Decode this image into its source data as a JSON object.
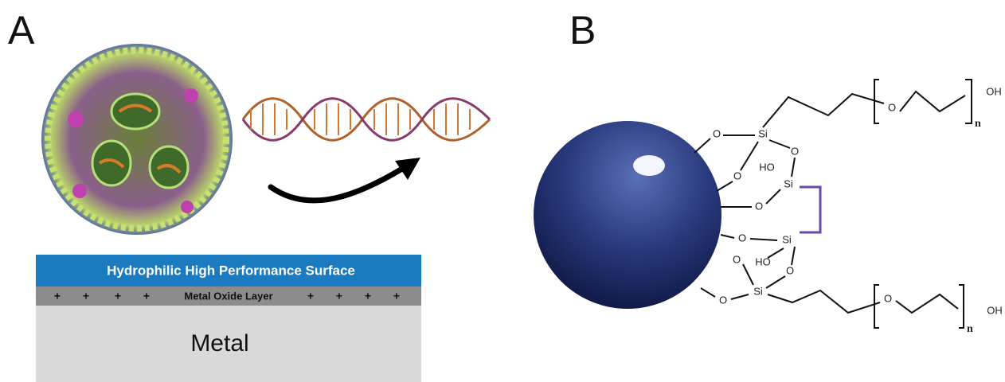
{
  "panels": [
    {
      "label": "A"
    },
    {
      "label": "B"
    }
  ],
  "layers": {
    "surface": "Hydrophilic High Performance Surface",
    "oxide": {
      "label": "Metal Oxide Layer",
      "charges": [
        "+",
        "+",
        "+",
        "+",
        "+",
        "+",
        "+",
        "+"
      ]
    },
    "metal": "Metal"
  },
  "molecule": {
    "atoms": [
      "O",
      "Si",
      "O",
      "O",
      "HO",
      "Si",
      "O",
      "O",
      "Si",
      "O",
      "HO",
      "O",
      "O",
      "Si"
    ],
    "chains": [
      {
        "atom": "O",
        "subscript": "n",
        "end": "OH"
      },
      {
        "atom": "O",
        "subscript": "n",
        "end": "OH"
      }
    ]
  }
}
